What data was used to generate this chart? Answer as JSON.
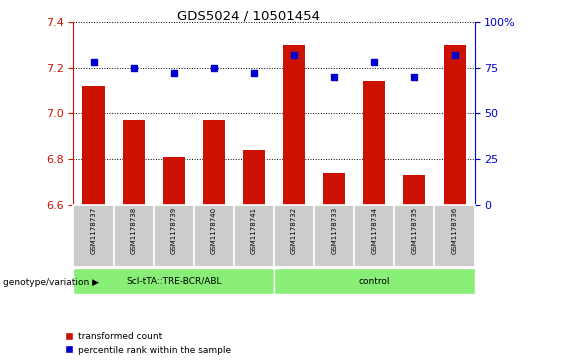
{
  "title": "GDS5024 / 10501454",
  "samples": [
    "GSM1178737",
    "GSM1178738",
    "GSM1178739",
    "GSM1178740",
    "GSM1178741",
    "GSM1178732",
    "GSM1178733",
    "GSM1178734",
    "GSM1178735",
    "GSM1178736"
  ],
  "red_values": [
    7.12,
    6.97,
    6.81,
    6.97,
    6.84,
    7.3,
    6.74,
    7.14,
    6.73,
    7.3
  ],
  "blue_values": [
    78,
    75,
    72,
    75,
    72,
    82,
    70,
    78,
    70,
    82
  ],
  "group1_label": "ScI-tTA::TRE-BCR/ABL",
  "group2_label": "control",
  "group1_count": 5,
  "group2_count": 5,
  "y_min": 6.6,
  "y_max": 7.4,
  "y_ticks": [
    6.6,
    6.8,
    7.0,
    7.2,
    7.4
  ],
  "right_y_ticks": [
    0,
    25,
    50,
    75,
    100
  ],
  "bar_color": "#cc1100",
  "dot_color": "#0000cc",
  "group_bg": "#88ee77",
  "label_area_bg": "#cccccc",
  "legend_red_label": "transformed count",
  "legend_blue_label": "percentile rank within the sample",
  "genotype_label": "genotype/variation",
  "bar_width": 0.55
}
